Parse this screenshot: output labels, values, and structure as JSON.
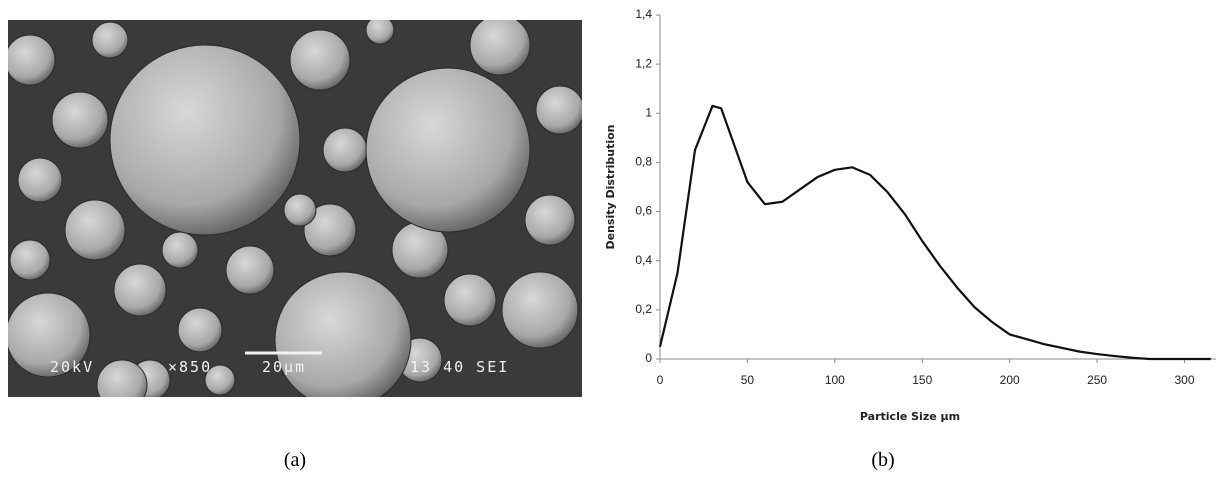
{
  "sem_image": {
    "overlay_texts": [
      "20kV",
      "×850",
      "20μm",
      "13 40 SEI"
    ]
  },
  "captions": [
    "(a)",
    "(b)"
  ],
  "chart_data": {
    "type": "line",
    "x_label": "Particle Size µm",
    "y_label": "Density Distribution",
    "x": [
      0,
      10,
      20,
      30,
      35,
      40,
      50,
      60,
      70,
      80,
      90,
      100,
      110,
      120,
      130,
      140,
      150,
      160,
      170,
      180,
      190,
      200,
      210,
      220,
      230,
      240,
      250,
      260,
      270,
      280,
      290,
      300,
      315
    ],
    "series": [
      {
        "color": "#111111",
        "values": [
          0.05,
          0.35,
          0.85,
          1.03,
          1.02,
          0.92,
          0.72,
          0.63,
          0.64,
          0.69,
          0.74,
          0.77,
          0.78,
          0.75,
          0.68,
          0.59,
          0.48,
          0.38,
          0.29,
          0.21,
          0.15,
          0.1,
          0.08,
          0.06,
          0.045,
          0.03,
          0.02,
          0.012,
          0.005,
          0,
          0,
          0,
          0
        ]
      }
    ],
    "xlim": [
      0,
      318
    ],
    "ylim": [
      0,
      1.4
    ],
    "xticks": [
      0,
      50,
      100,
      150,
      200,
      250,
      300
    ],
    "yticks": [
      0,
      {
        "value": 0.2,
        "label": "0,2"
      },
      {
        "value": 0.4,
        "label": "0,4"
      },
      {
        "value": 0.6,
        "label": "0,6"
      },
      {
        "value": 0.8,
        "label": "0,8"
      },
      1,
      {
        "value": 1.2,
        "label": "1,2"
      },
      {
        "value": 1.4,
        "label": "1,4"
      }
    ]
  }
}
